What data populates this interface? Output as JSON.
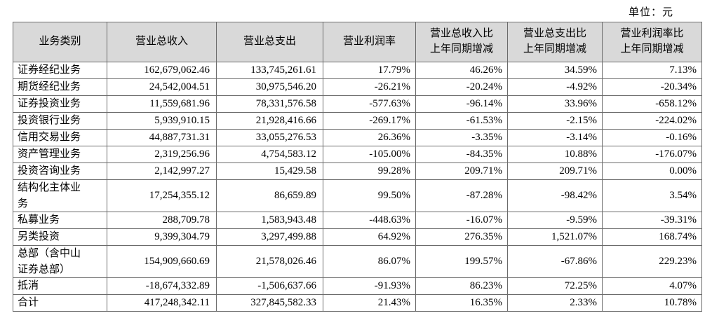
{
  "unit_label": "单位：元",
  "colors": {
    "header_bg": "#d9d9d9",
    "border": "#6b6b6b",
    "text": "#000000"
  },
  "table": {
    "columns": [
      {
        "label": "业务类别"
      },
      {
        "label": "营业总收入"
      },
      {
        "label": "营业总支出"
      },
      {
        "label": "营业利润率"
      },
      {
        "label": "营业总收入比\n上年同期增减"
      },
      {
        "label": "营业总支出比\n上年同期增减"
      },
      {
        "label": "营业利润率比\n上年同期增减"
      }
    ],
    "rows": [
      {
        "category": "证券经纪业务",
        "revenue": "162,679,062.46",
        "expense": "133,745,261.61",
        "margin": "17.79%",
        "revenue_yoy": "46.26%",
        "expense_yoy": "34.59%",
        "margin_yoy": "7.13%"
      },
      {
        "category": "期货经纪业务",
        "revenue": "24,542,004.51",
        "expense": "30,975,546.20",
        "margin": "-26.21%",
        "revenue_yoy": "-20.24%",
        "expense_yoy": "-4.92%",
        "margin_yoy": "-20.34%"
      },
      {
        "category": "证券投资业务",
        "revenue": "11,559,681.96",
        "expense": "78,331,576.58",
        "margin": "-577.63%",
        "revenue_yoy": "-96.14%",
        "expense_yoy": "33.96%",
        "margin_yoy": "-658.12%"
      },
      {
        "category": "投资银行业务",
        "revenue": "5,939,910.15",
        "expense": "21,928,416.66",
        "margin": "-269.17%",
        "revenue_yoy": "-61.53%",
        "expense_yoy": "-2.15%",
        "margin_yoy": "-224.02%"
      },
      {
        "category": "信用交易业务",
        "revenue": "44,887,731.31",
        "expense": "33,055,276.53",
        "margin": "26.36%",
        "revenue_yoy": "-3.35%",
        "expense_yoy": "-3.14%",
        "margin_yoy": "-0.16%"
      },
      {
        "category": "资产管理业务",
        "revenue": "2,319,256.96",
        "expense": "4,754,583.12",
        "margin": "-105.00%",
        "revenue_yoy": "-84.35%",
        "expense_yoy": "10.88%",
        "margin_yoy": "-176.07%"
      },
      {
        "category": "投资咨询业务",
        "revenue": "2,142,997.27",
        "expense": "15,429.58",
        "margin": "99.28%",
        "revenue_yoy": "209.71%",
        "expense_yoy": "209.71%",
        "margin_yoy": "0.00%"
      },
      {
        "category": "结构化主体业\n务",
        "revenue": "17,254,355.12",
        "expense": "86,659.89",
        "margin": "99.50%",
        "revenue_yoy": "-87.28%",
        "expense_yoy": "-98.42%",
        "margin_yoy": "3.54%"
      },
      {
        "category": "私募业务",
        "revenue": "288,709.78",
        "expense": "1,583,943.48",
        "margin": "-448.63%",
        "revenue_yoy": "-16.07%",
        "expense_yoy": "-9.59%",
        "margin_yoy": "-39.31%"
      },
      {
        "category": "另类投资",
        "revenue": "9,399,304.79",
        "expense": "3,297,499.88",
        "margin": "64.92%",
        "revenue_yoy": "276.35%",
        "expense_yoy": "1,521.07%",
        "margin_yoy": "168.74%"
      },
      {
        "category": "总部（含中山\n证券总部）",
        "revenue": "154,909,660.69",
        "expense": "21,578,026.46",
        "margin": "86.07%",
        "revenue_yoy": "199.57%",
        "expense_yoy": "-67.86%",
        "margin_yoy": "229.23%"
      },
      {
        "category": "抵消",
        "revenue": "-18,674,332.89",
        "expense": "-1,506,637.66",
        "margin": "-91.93%",
        "revenue_yoy": "86.23%",
        "expense_yoy": "72.25%",
        "margin_yoy": "4.07%"
      },
      {
        "category": "合计",
        "revenue": "417,248,342.11",
        "expense": "327,845,582.33",
        "margin": "21.43%",
        "revenue_yoy": "16.35%",
        "expense_yoy": "2.33%",
        "margin_yoy": "10.78%"
      }
    ]
  }
}
